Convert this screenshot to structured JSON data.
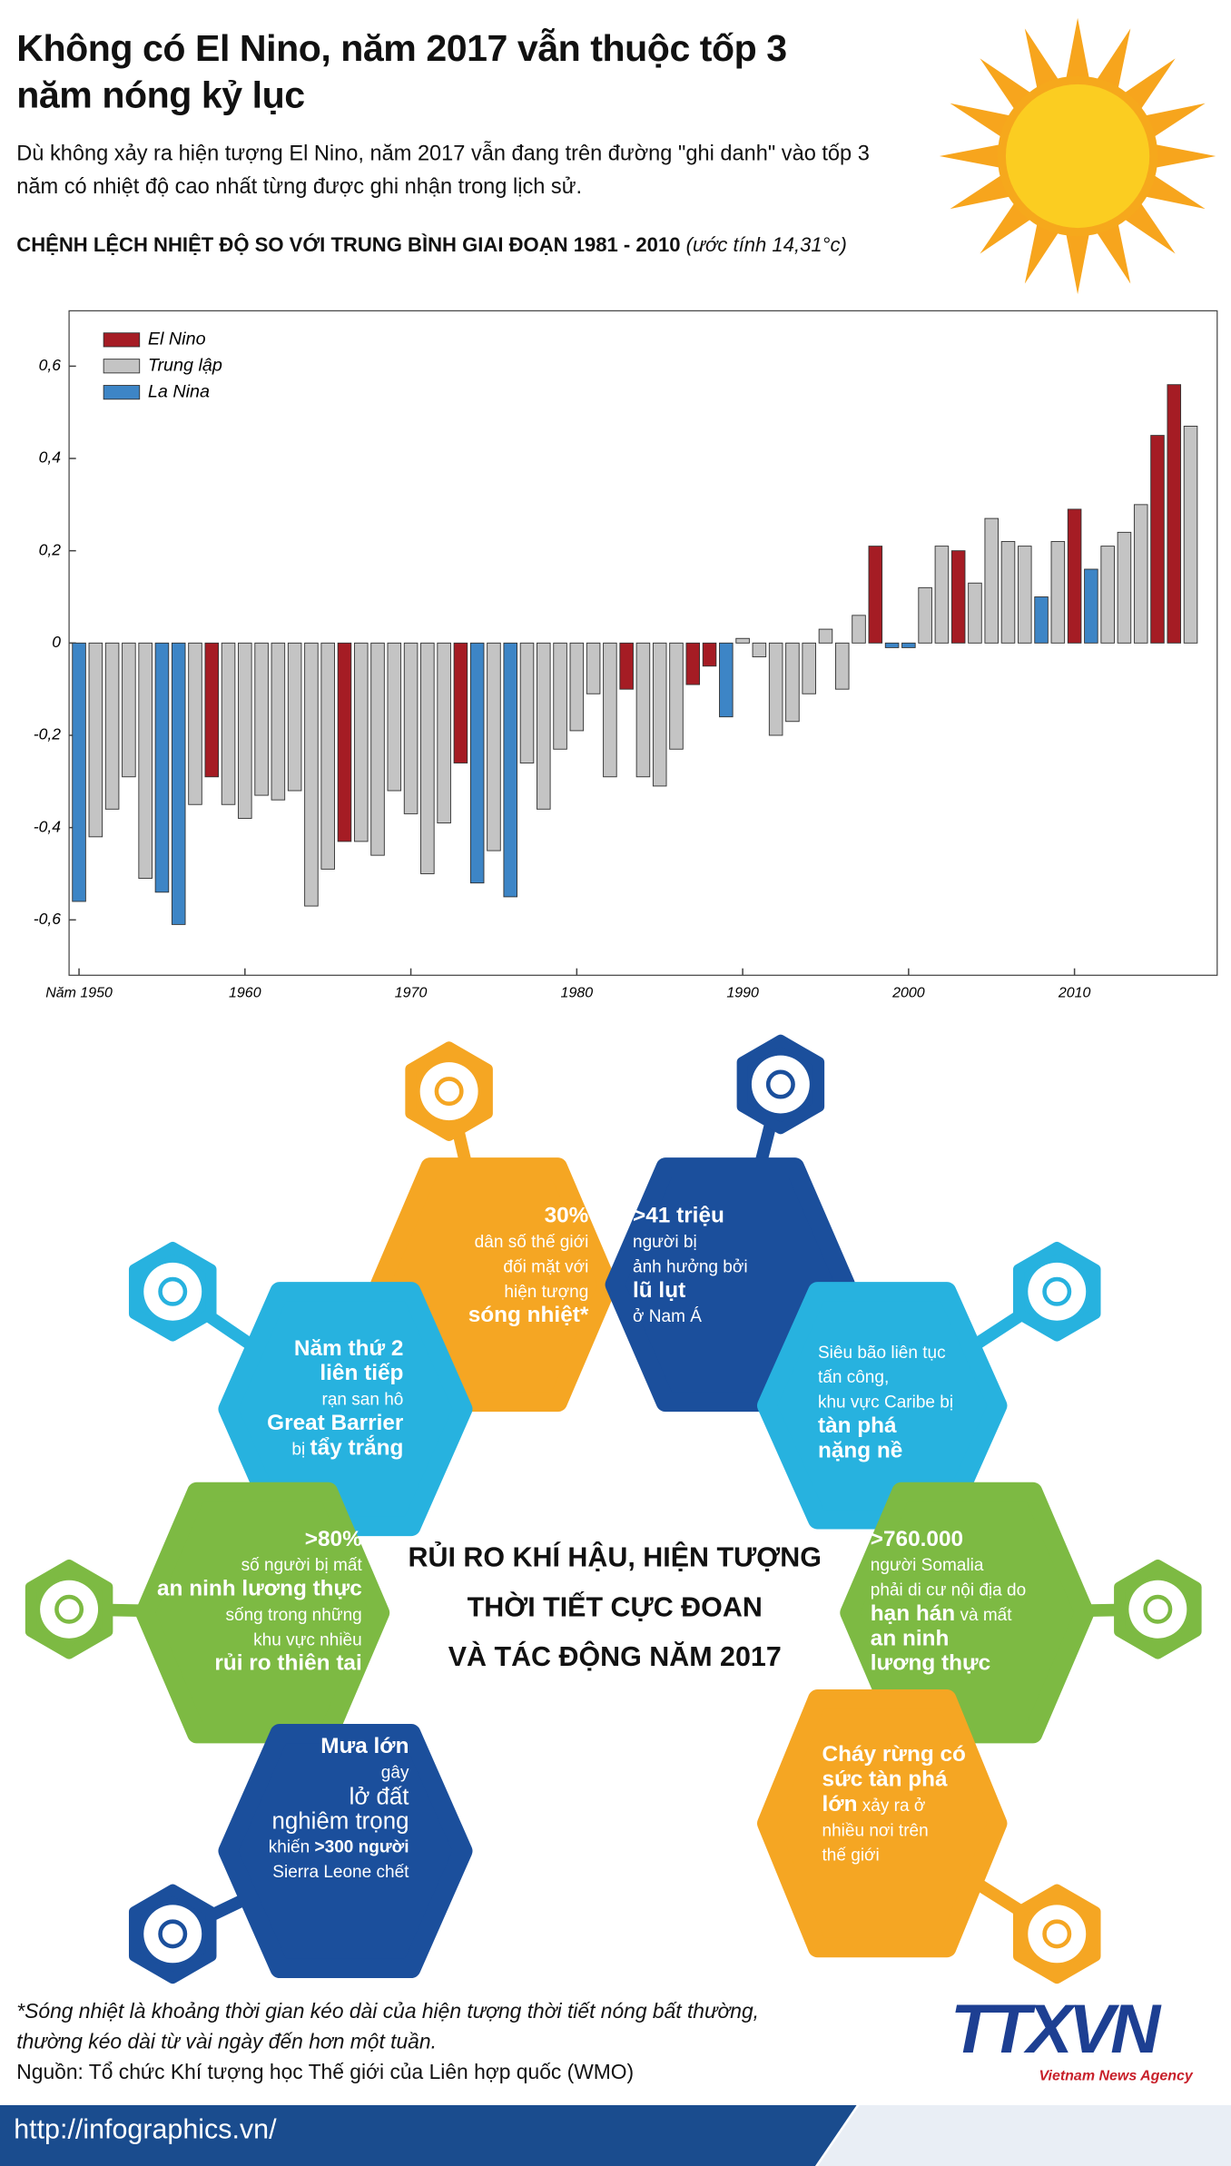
{
  "header": {
    "title": "Không có El Nino, năm 2017 vẫn thuộc tốp 3 năm nóng kỷ lục",
    "subtitle": "Dù không xảy ra hiện tượng El Nino, năm 2017 vẫn đang trên đường \"ghi danh\" vào tốp 3 năm có nhiệt độ cao nhất từng được ghi nhận trong lịch sử.",
    "chart_heading": "CHỆNH LỆCH NHIỆT ĐỘ SO VỚI TRUNG BÌNH GIAI ĐOẠN 1981 - 2010",
    "chart_note": "(ước tính 14,31°c)"
  },
  "chart_data": {
    "type": "bar",
    "x": [
      1950,
      1951,
      1952,
      1953,
      1954,
      1955,
      1956,
      1957,
      1958,
      1959,
      1960,
      1961,
      1962,
      1963,
      1964,
      1965,
      1966,
      1967,
      1968,
      1969,
      1970,
      1971,
      1972,
      1973,
      1974,
      1975,
      1976,
      1977,
      1978,
      1979,
      1980,
      1981,
      1982,
      1983,
      1984,
      1985,
      1986,
      1987,
      1988,
      1989,
      1990,
      1991,
      1992,
      1993,
      1994,
      1995,
      1996,
      1997,
      1998,
      1999,
      2000,
      2001,
      2002,
      2003,
      2004,
      2005,
      2006,
      2007,
      2008,
      2009,
      2010,
      2011,
      2012,
      2013,
      2014,
      2015,
      2016,
      2017
    ],
    "series": [
      {
        "name": "El Nino",
        "color": "#a51c24",
        "values": [
          null,
          null,
          null,
          null,
          null,
          null,
          null,
          null,
          -0.29,
          null,
          null,
          null,
          null,
          null,
          null,
          null,
          -0.43,
          null,
          null,
          null,
          null,
          null,
          null,
          -0.26,
          null,
          null,
          null,
          null,
          null,
          null,
          null,
          null,
          null,
          -0.1,
          null,
          null,
          null,
          -0.09,
          -0.05,
          null,
          null,
          null,
          null,
          null,
          null,
          null,
          null,
          null,
          0.21,
          null,
          null,
          null,
          null,
          0.2,
          null,
          null,
          null,
          null,
          null,
          null,
          0.29,
          null,
          null,
          null,
          null,
          0.45,
          0.56,
          null
        ]
      },
      {
        "name": "Trung lập",
        "color": "#c4c4c4",
        "values": [
          null,
          -0.42,
          -0.36,
          -0.29,
          -0.51,
          null,
          null,
          -0.35,
          null,
          -0.35,
          -0.38,
          -0.33,
          -0.34,
          -0.32,
          -0.57,
          -0.49,
          null,
          -0.43,
          -0.46,
          -0.32,
          -0.37,
          -0.5,
          -0.39,
          null,
          null,
          -0.45,
          null,
          -0.26,
          -0.36,
          -0.23,
          -0.19,
          -0.11,
          -0.29,
          null,
          -0.29,
          -0.31,
          -0.23,
          null,
          null,
          null,
          0.01,
          -0.03,
          -0.2,
          -0.17,
          -0.11,
          0.03,
          -0.1,
          0.06,
          null,
          null,
          null,
          0.12,
          0.21,
          null,
          0.13,
          0.27,
          0.22,
          0.21,
          null,
          0.22,
          null,
          null,
          0.21,
          0.24,
          0.3,
          null,
          null,
          0.47
        ]
      },
      {
        "name": "La Nina",
        "color": "#3d85c6",
        "values": [
          -0.56,
          null,
          null,
          null,
          null,
          -0.54,
          -0.61,
          null,
          null,
          null,
          null,
          null,
          null,
          null,
          null,
          null,
          null,
          null,
          null,
          null,
          null,
          null,
          null,
          null,
          -0.52,
          null,
          -0.55,
          null,
          null,
          null,
          null,
          null,
          null,
          null,
          null,
          null,
          null,
          null,
          null,
          -0.16,
          null,
          null,
          null,
          null,
          null,
          null,
          null,
          null,
          null,
          -0.01,
          -0.01,
          null,
          null,
          null,
          null,
          null,
          null,
          null,
          0.1,
          null,
          null,
          0.16,
          null,
          null,
          null,
          null,
          null,
          null
        ]
      }
    ],
    "xlim": [
      1949.4,
      2018.6
    ],
    "xticks": [
      {
        "value": 1950,
        "label": "Năm 1950"
      },
      1960,
      1970,
      1980,
      1990,
      2000,
      2010
    ],
    "ylim": [
      -0.72,
      0.72
    ],
    "yticks": [
      {
        "value": -0.6,
        "label": "-0,6"
      },
      {
        "value": -0.4,
        "label": "-0,4"
      },
      {
        "value": -0.2,
        "label": "-0,2"
      },
      0,
      {
        "value": 0.2,
        "label": "0,2"
      },
      {
        "value": 0.4,
        "label": "0,4"
      },
      {
        "value": 0.6,
        "label": "0,6"
      }
    ],
    "legend": "upper left",
    "grid": false
  },
  "diagram": {
    "center_title": [
      "RỦI RO KHÍ HẬU, HIỆN TƯỢNG",
      "THỜI TIẾT CỰC ĐOAN",
      "VÀ TÁC ĐỘNG NĂM 2017"
    ],
    "panels": [
      {
        "lines": [
          [
            "30%"
          ],
          [
            "dân số thế giới"
          ],
          [
            "đối mặt với"
          ],
          [
            "hiện tượng"
          ],
          [
            "sóng nhiệt*"
          ]
        ]
      },
      {
        "lines": [
          [
            ">41 triệu"
          ],
          [
            "người bị"
          ],
          [
            "ảnh hưởng bởi"
          ],
          [
            "lũ lụt"
          ],
          [
            "ở Nam Á"
          ]
        ]
      },
      {
        "lines": [
          [
            "Năm thứ 2"
          ],
          [
            "liên tiếp"
          ],
          [
            "rạn san hô"
          ],
          [
            "Great Barrier"
          ],
          [
            "bị",
            "tẩy trắng"
          ]
        ]
      },
      {
        "lines": [
          [
            "Siêu bão liên tục"
          ],
          [
            "tấn công,"
          ],
          [
            "khu vực Caribe bị"
          ],
          [
            "tàn phá"
          ],
          [
            "nặng nề"
          ]
        ]
      },
      {
        "lines": [
          [
            ">80%"
          ],
          [
            "số người bị mất"
          ],
          [
            "an ninh lương thực"
          ],
          [
            "sống trong những"
          ],
          [
            "khu vực nhiều"
          ],
          [
            "rủi ro thiên tai"
          ]
        ]
      },
      {
        "lines": [
          [
            ">760.000"
          ],
          [
            "người Somalia"
          ],
          [
            "phải di cư nội địa do"
          ],
          [
            "hạn hán",
            "và mất"
          ],
          [
            "an ninh"
          ],
          [
            "lương thực"
          ]
        ]
      },
      {
        "lines": [
          [
            "Mưa lớn"
          ],
          [
            "gây"
          ],
          [
            "lở đất"
          ],
          [
            "nghiêm trọng"
          ],
          [
            "khiến",
            ">300 người"
          ],
          [
            "Sierra Leone chết"
          ]
        ]
      },
      {
        "lines": [
          [
            "Cháy rừng có"
          ],
          [
            "sức tàn phá"
          ],
          [
            "lớn",
            "xảy ra ở"
          ],
          [
            "nhiều nơi trên"
          ],
          [
            "thế giới"
          ]
        ]
      }
    ]
  },
  "footer": {
    "note": [
      "*Sóng nhiệt là khoảng thời gian kéo dài của hiện tượng thời tiết nóng bất thường,",
      "thường kéo dài từ vài ngày đến hơn một tuần."
    ],
    "source": "Nguồn: Tổ chức Khí tượng học Thế giới của Liên hợp quốc (WMO)",
    "logo": "TTXVN",
    "logo_sub": "Vietnam News Agency",
    "url": "http://infographics.vn/"
  }
}
